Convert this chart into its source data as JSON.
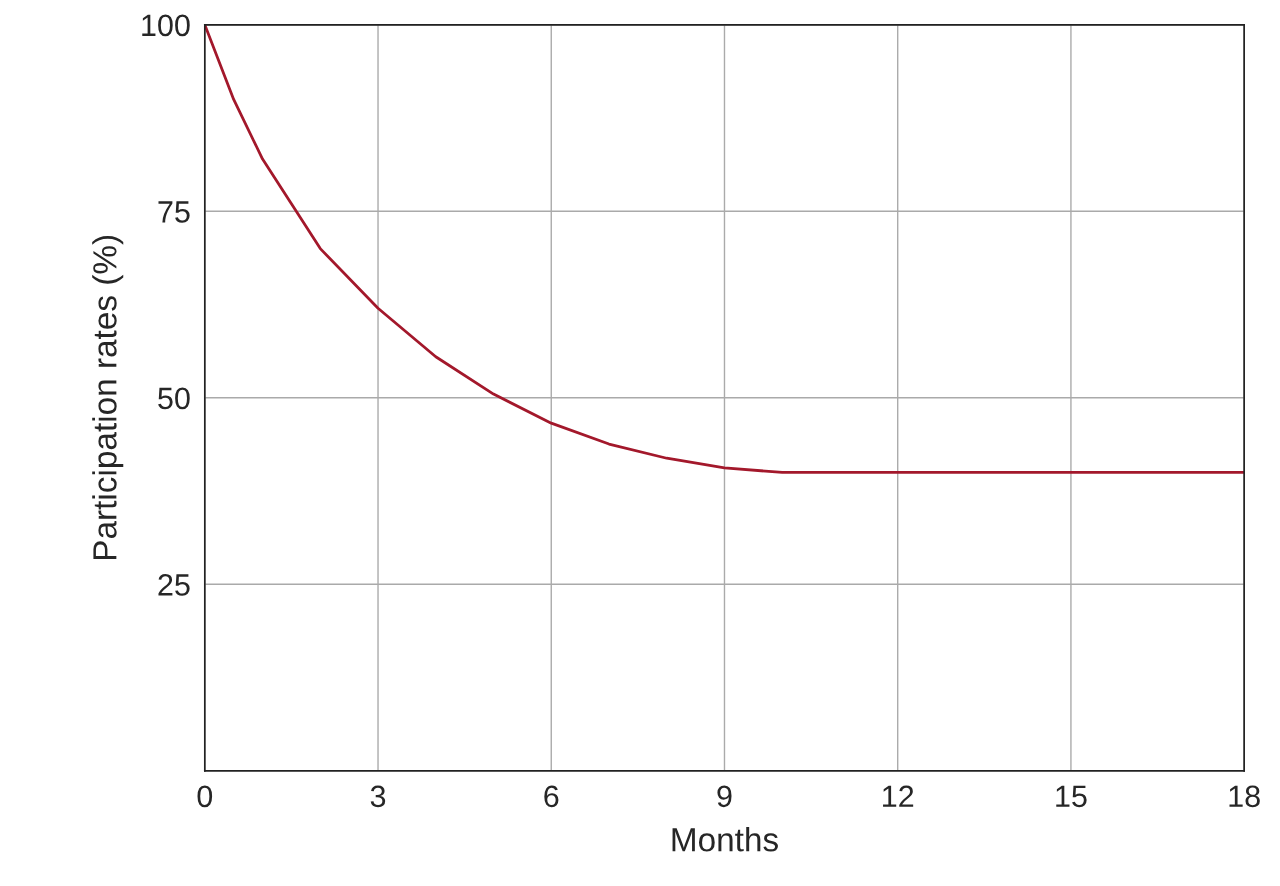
{
  "chart_data": {
    "type": "line",
    "xlabel": "Months",
    "ylabel": "Participation rates (%)",
    "x": [
      0,
      0.5,
      1,
      1.5,
      2,
      3,
      4,
      5,
      6,
      7,
      8,
      9,
      10,
      18
    ],
    "series": [
      {
        "color": "#a3182b",
        "values": [
          100,
          90,
          82,
          76,
          70,
          62,
          55.5,
          50.5,
          46.6,
          43.8,
          41.9,
          40.6,
          40,
          40
        ]
      }
    ],
    "xlim": [
      0,
      18
    ],
    "xticks": [
      0,
      3,
      6,
      9,
      12,
      15,
      18
    ],
    "ylim": [
      0,
      100
    ],
    "yticks": [
      25,
      50,
      75,
      100
    ],
    "grid": true,
    "marker": "none",
    "line_style": "solid"
  }
}
